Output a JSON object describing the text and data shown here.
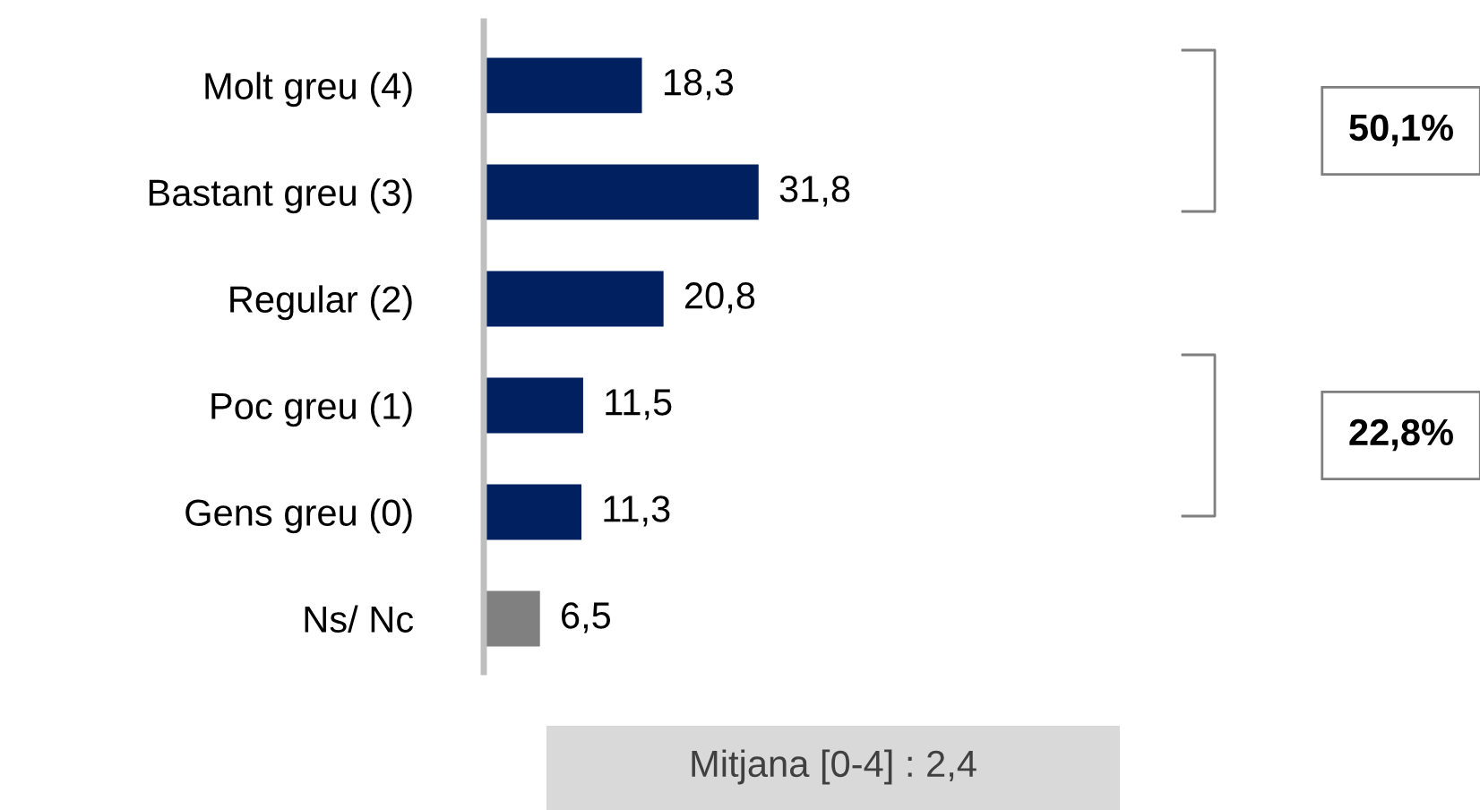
{
  "chart_data": {
    "type": "bar",
    "orientation": "horizontal",
    "categories": [
      "Molt greu (4)",
      "Bastant greu (3)",
      "Regular (2)",
      "Poc greu (1)",
      "Gens greu (0)",
      "Ns/ Nc"
    ],
    "values": [
      18.3,
      31.8,
      20.8,
      11.5,
      11.3,
      6.5
    ],
    "colors": [
      "#002060",
      "#002060",
      "#002060",
      "#002060",
      "#002060",
      "#808080"
    ],
    "value_labels": [
      "18,3",
      "31,8",
      "20,8",
      "11,5",
      "11,3",
      "6,5"
    ],
    "annotations": [
      "50,1%",
      "22,8%",
      "Mitjana [0-4] : 2,4"
    ],
    "grid": false,
    "legend": false
  }
}
